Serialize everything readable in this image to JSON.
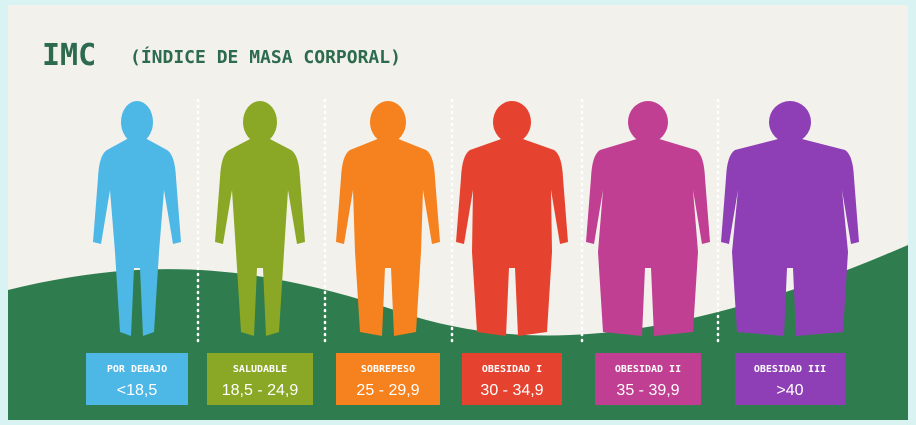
{
  "header": {
    "title": "IMC",
    "subtitle": "(ÍNDICE DE MASA CORPORAL)"
  },
  "categories": [
    {
      "label": "POR DEBAJO",
      "range": "<18,5",
      "color": "#4db7e5"
    },
    {
      "label": "SALUDABLE",
      "range": "18,5 - 24,9",
      "color": "#8aa825"
    },
    {
      "label": "SOBREPESO",
      "range": "25 - 29,9",
      "color": "#f5821f"
    },
    {
      "label": "OBESIDAD I",
      "range": "30 - 34,9",
      "color": "#e5432f"
    },
    {
      "label": "OBESIDAD II",
      "range": "35 - 39,9",
      "color": "#c03f92"
    },
    {
      "label": "OBESIDAD III",
      "range": ">40",
      "color": "#8e3fb5"
    }
  ]
}
